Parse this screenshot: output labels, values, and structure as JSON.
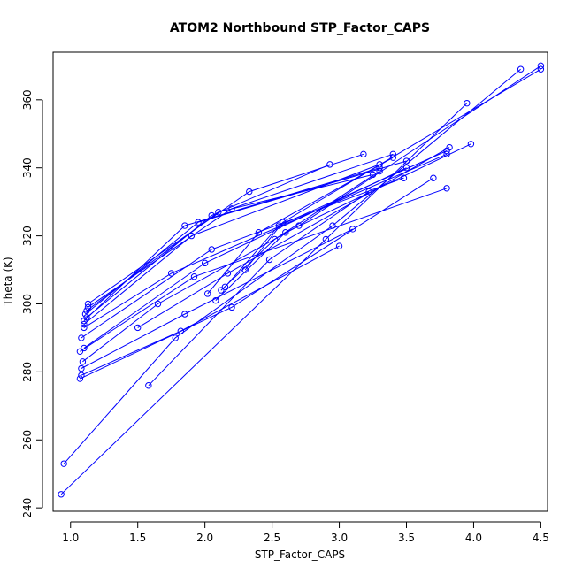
{
  "chart_data": {
    "type": "line",
    "title": "ATOM2 Northbound STP_Factor_CAPS",
    "xlabel": "STP_Factor_CAPS",
    "ylabel": "Theta (K)",
    "xlim": [
      0.87,
      4.55
    ],
    "ylim": [
      239,
      374
    ],
    "xticks": [
      "1.0",
      "1.5",
      "2.0",
      "2.5",
      "3.0",
      "3.5",
      "4.0",
      "4.5"
    ],
    "yticks": [
      "240",
      "260",
      "280",
      "300",
      "320",
      "340",
      "360"
    ],
    "grid": false,
    "legend": "none",
    "series_color": "#0000ff",
    "marker": "open-circle",
    "series": [
      {
        "points": [
          [
            0.93,
            244
          ],
          [
            2.9,
            319
          ],
          [
            3.95,
            359
          ]
        ]
      },
      {
        "points": [
          [
            0.95,
            253
          ],
          [
            1.78,
            290
          ],
          [
            2.95,
            323
          ],
          [
            4.35,
            369
          ]
        ]
      },
      {
        "points": [
          [
            1.07,
            278
          ],
          [
            2.2,
            299
          ],
          [
            3.7,
            337
          ]
        ]
      },
      {
        "points": [
          [
            1.08,
            279
          ],
          [
            1.82,
            292
          ],
          [
            3.0,
            317
          ]
        ]
      },
      {
        "points": [
          [
            1.08,
            281
          ],
          [
            1.85,
            297
          ],
          [
            3.1,
            322
          ]
        ]
      },
      {
        "points": [
          [
            1.09,
            283
          ],
          [
            1.65,
            300
          ],
          [
            2.7,
            323
          ],
          [
            4.5,
            370
          ]
        ]
      },
      {
        "points": [
          [
            1.07,
            286
          ],
          [
            1.92,
            308
          ],
          [
            3.8,
            334
          ]
        ]
      },
      {
        "points": [
          [
            1.1,
            287
          ],
          [
            2.0,
            312
          ],
          [
            3.5,
            340
          ]
        ]
      },
      {
        "points": [
          [
            1.08,
            290
          ],
          [
            2.05,
            316
          ],
          [
            3.48,
            337
          ]
        ]
      },
      {
        "points": [
          [
            1.1,
            293
          ],
          [
            1.75,
            309
          ],
          [
            3.8,
            344
          ]
        ]
      },
      {
        "points": [
          [
            1.1,
            295
          ],
          [
            1.85,
            323
          ],
          [
            3.3,
            340
          ]
        ]
      },
      {
        "points": [
          [
            1.11,
            297
          ],
          [
            1.95,
            324
          ],
          [
            3.5,
            342
          ]
        ]
      },
      {
        "points": [
          [
            1.12,
            298
          ],
          [
            2.1,
            327
          ],
          [
            3.25,
            338
          ]
        ]
      },
      {
        "points": [
          [
            1.13,
            299
          ],
          [
            2.2,
            328
          ],
          [
            3.4,
            344
          ]
        ]
      },
      {
        "points": [
          [
            1.13,
            300
          ],
          [
            2.33,
            333
          ],
          [
            3.18,
            344
          ]
        ]
      },
      {
        "points": [
          [
            1.12,
            296
          ],
          [
            2.05,
            326
          ],
          [
            2.93,
            341
          ]
        ]
      },
      {
        "points": [
          [
            1.1,
            294
          ],
          [
            1.9,
            320
          ],
          [
            3.3,
            341
          ]
        ]
      },
      {
        "points": [
          [
            1.5,
            293
          ],
          [
            2.17,
            309
          ],
          [
            3.82,
            346
          ]
        ]
      },
      {
        "points": [
          [
            1.58,
            276
          ],
          [
            2.48,
            313
          ],
          [
            3.22,
            333
          ]
        ]
      },
      {
        "points": [
          [
            2.08,
            301
          ],
          [
            2.6,
            321
          ],
          [
            3.98,
            347
          ]
        ]
      },
      {
        "points": [
          [
            2.15,
            305
          ],
          [
            2.55,
            323
          ],
          [
            3.8,
            345
          ]
        ]
      },
      {
        "points": [
          [
            2.3,
            310
          ],
          [
            2.58,
            324
          ],
          [
            4.5,
            369
          ]
        ]
      },
      {
        "points": [
          [
            2.12,
            304
          ],
          [
            2.52,
            319
          ],
          [
            3.3,
            339
          ]
        ]
      },
      {
        "points": [
          [
            2.02,
            303
          ],
          [
            2.4,
            321
          ],
          [
            3.4,
            343
          ]
        ]
      }
    ]
  }
}
